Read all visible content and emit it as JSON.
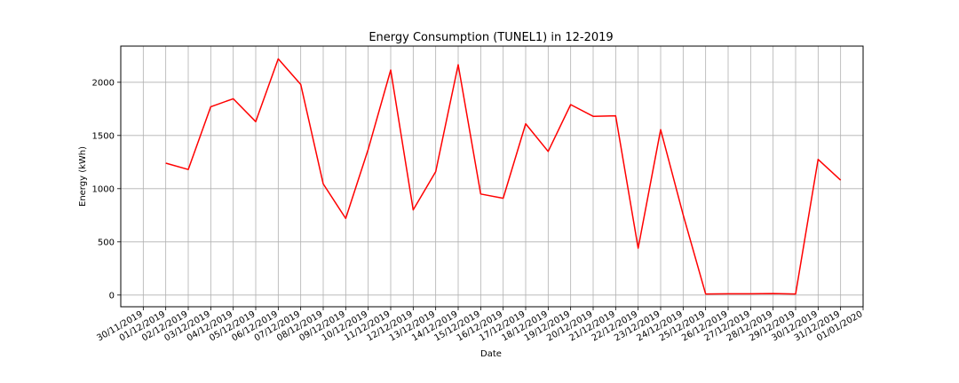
{
  "chart_data": {
    "type": "line",
    "title": "Energy Consumption (TUNEL1) in 12-2019",
    "xlabel": "Date",
    "ylabel": "Energy (kWh)",
    "x_tick_labels": [
      "30/11/2019",
      "01/12/2019",
      "02/12/2019",
      "03/12/2019",
      "04/12/2019",
      "05/12/2019",
      "06/12/2019",
      "07/12/2019",
      "08/12/2019",
      "09/12/2019",
      "10/12/2019",
      "11/12/2019",
      "12/12/2019",
      "13/12/2019",
      "14/12/2019",
      "15/12/2019",
      "16/12/2019",
      "17/12/2019",
      "18/12/2019",
      "19/12/2019",
      "20/12/2019",
      "21/12/2019",
      "22/12/2019",
      "23/12/2019",
      "24/12/2019",
      "25/12/2019",
      "26/12/2019",
      "27/12/2019",
      "28/12/2019",
      "29/12/2019",
      "30/12/2019",
      "31/12/2019",
      "01/01/2020"
    ],
    "y_ticks": [
      0,
      500,
      1000,
      1500,
      2000
    ],
    "ylim": [
      -110,
      2340
    ],
    "xlim": [
      "29/11/2019",
      "01/01/2020"
    ],
    "grid": true,
    "series": [
      {
        "color": "#ff0000",
        "x": [
          "01/12/2019",
          "02/12/2019",
          "03/12/2019",
          "04/12/2019",
          "05/12/2019",
          "06/12/2019",
          "07/12/2019",
          "08/12/2019",
          "09/12/2019",
          "10/12/2019",
          "11/12/2019",
          "12/12/2019",
          "13/12/2019",
          "14/12/2019",
          "15/12/2019",
          "16/12/2019",
          "17/12/2019",
          "18/12/2019",
          "19/12/2019",
          "20/12/2019",
          "21/12/2019",
          "22/12/2019",
          "23/12/2019",
          "24/12/2019",
          "25/12/2019",
          "26/12/2019",
          "27/12/2019",
          "28/12/2019",
          "29/12/2019",
          "30/12/2019",
          "31/12/2019"
        ],
        "values": [
          1240,
          1180,
          1770,
          1845,
          1630,
          2220,
          1980,
          1045,
          720,
          1370,
          2115,
          800,
          1160,
          2165,
          950,
          910,
          1610,
          1350,
          1790,
          1680,
          1685,
          440,
          1555,
          755,
          10,
          12,
          12,
          14,
          10,
          1275,
          1080
        ]
      }
    ]
  }
}
